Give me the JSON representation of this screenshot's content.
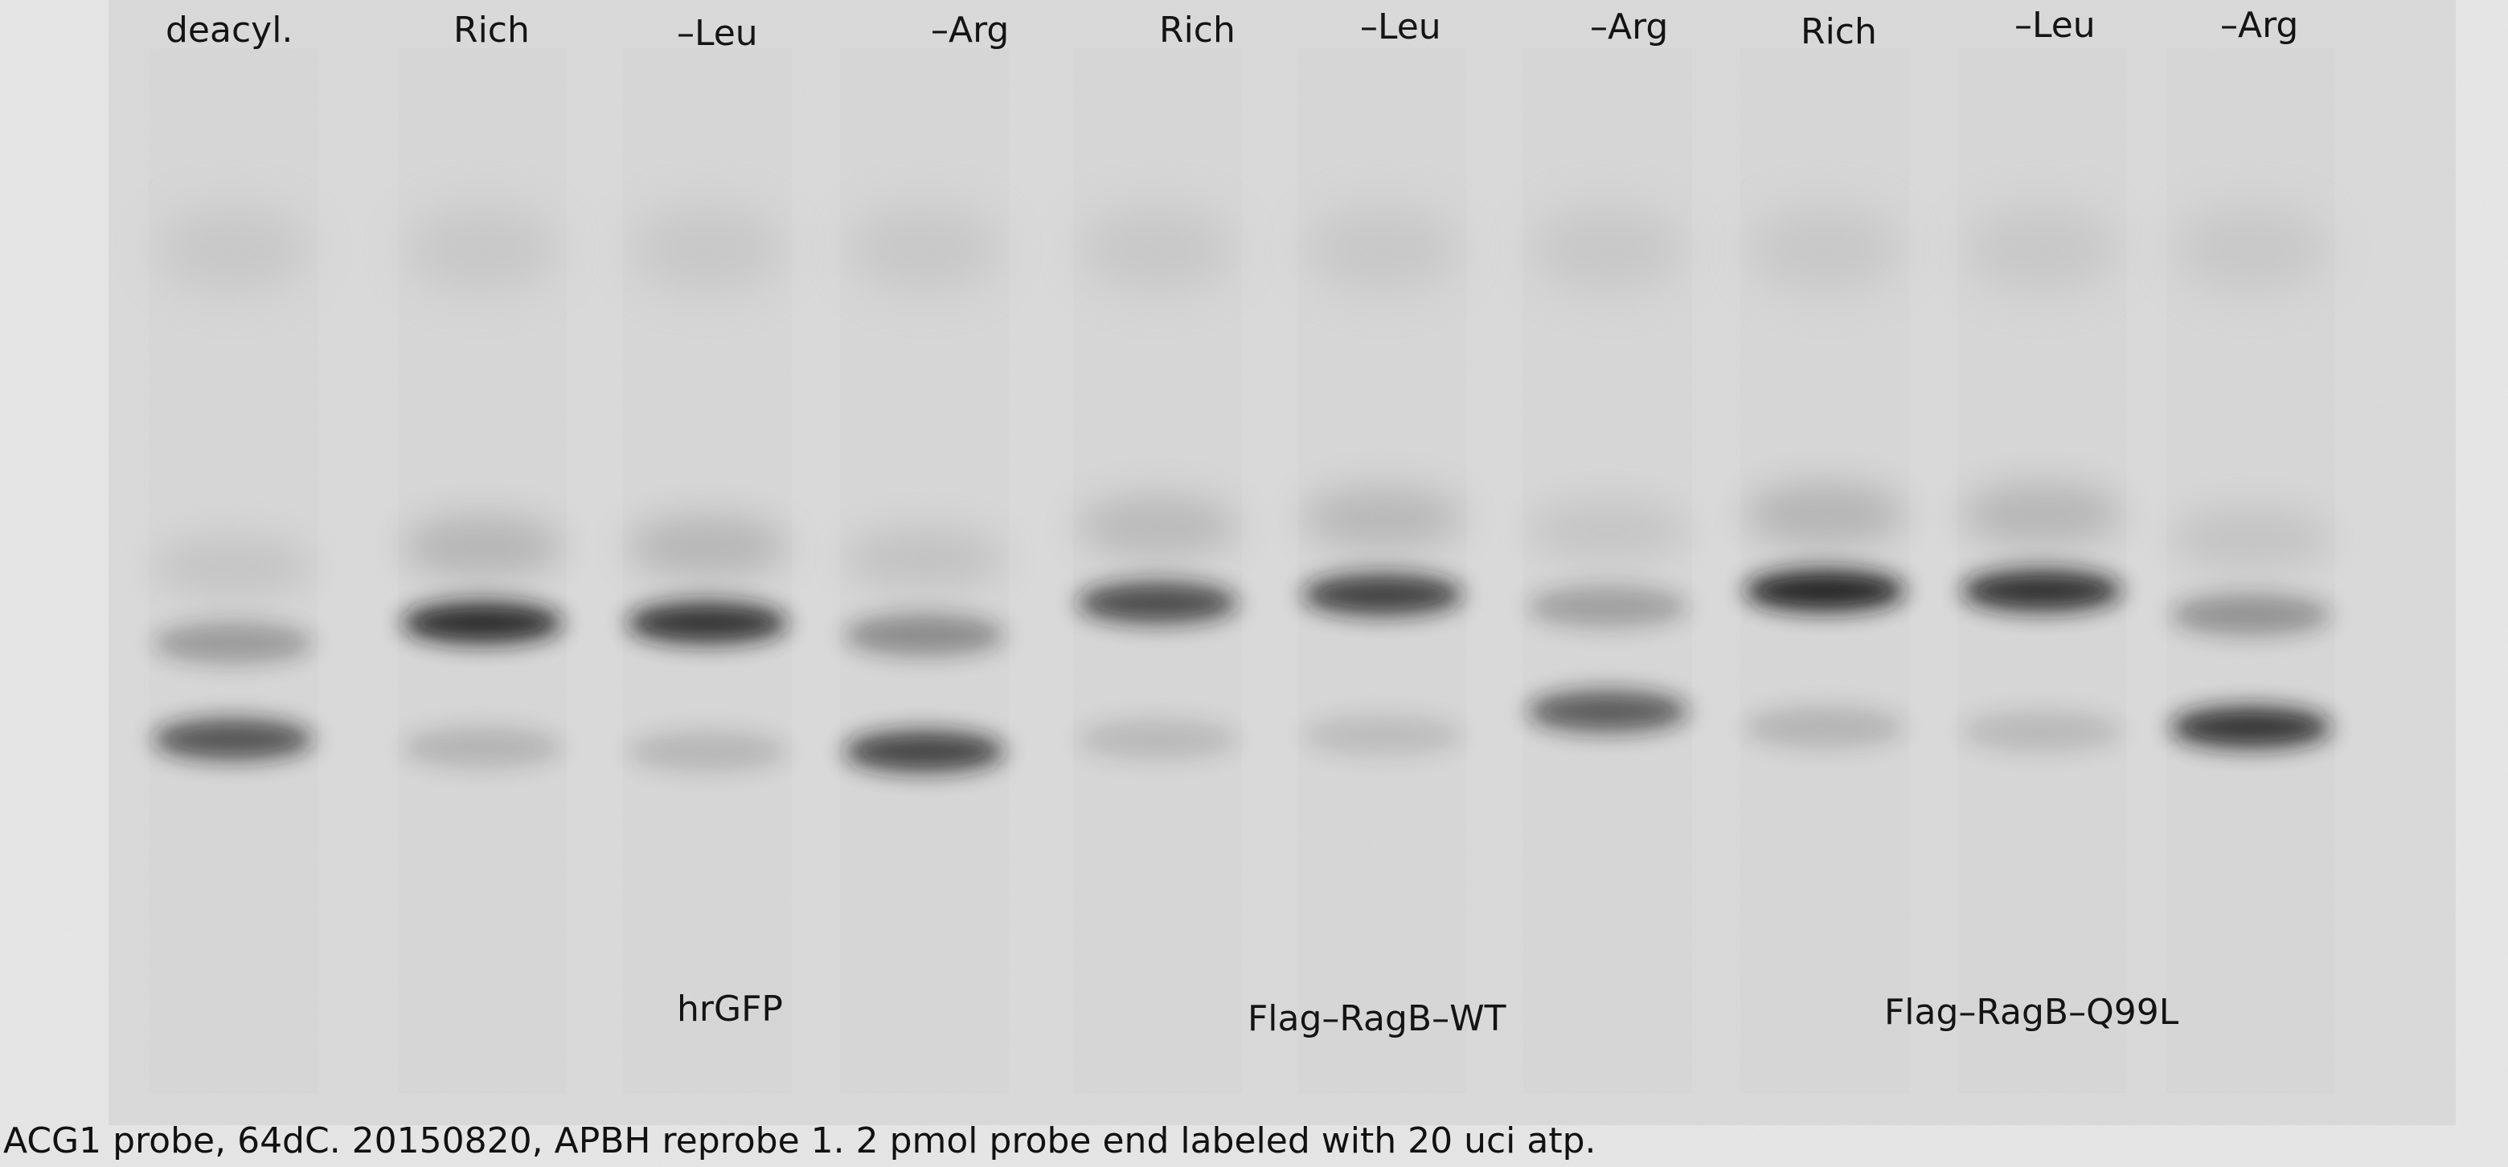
{
  "lanes": [
    {
      "label": "deacyl.",
      "upper_band_intensity": 0.25,
      "lower_band_intensity": 0.75
    },
    {
      "label": "Rich",
      "upper_band_intensity": 0.95,
      "lower_band_intensity": 0.12
    },
    {
      "label": "–Leu",
      "upper_band_intensity": 0.9,
      "lower_band_intensity": 0.1
    },
    {
      "label": "–Arg",
      "upper_band_intensity": 0.35,
      "lower_band_intensity": 0.85
    },
    {
      "label": "Rich",
      "upper_band_intensity": 0.75,
      "lower_band_intensity": 0.08
    },
    {
      "label": "–Leu",
      "upper_band_intensity": 0.82,
      "lower_band_intensity": 0.06
    },
    {
      "label": "–Arg",
      "upper_band_intensity": 0.22,
      "lower_band_intensity": 0.7
    },
    {
      "label": "Rich",
      "upper_band_intensity": 1.0,
      "lower_band_intensity": 0.12
    },
    {
      "label": "–Leu",
      "upper_band_intensity": 0.92,
      "lower_band_intensity": 0.08
    },
    {
      "label": "–Arg",
      "upper_band_intensity": 0.3,
      "lower_band_intensity": 0.95
    }
  ],
  "groups": {
    "hrgfp": "hrGFP",
    "ragb_wt": "Flag–RagB–WT",
    "ragb_q99l": "Flag–RagB–Q99L"
  },
  "caption": "ACG1 probe, 64dC. 20150820, APBH reprobe 1. 2 pmol probe end labeled with 20 uci atp.",
  "colors": {
    "background": "#e4e4e4",
    "membrane": "#d9d9d9",
    "band": "#141414"
  }
}
